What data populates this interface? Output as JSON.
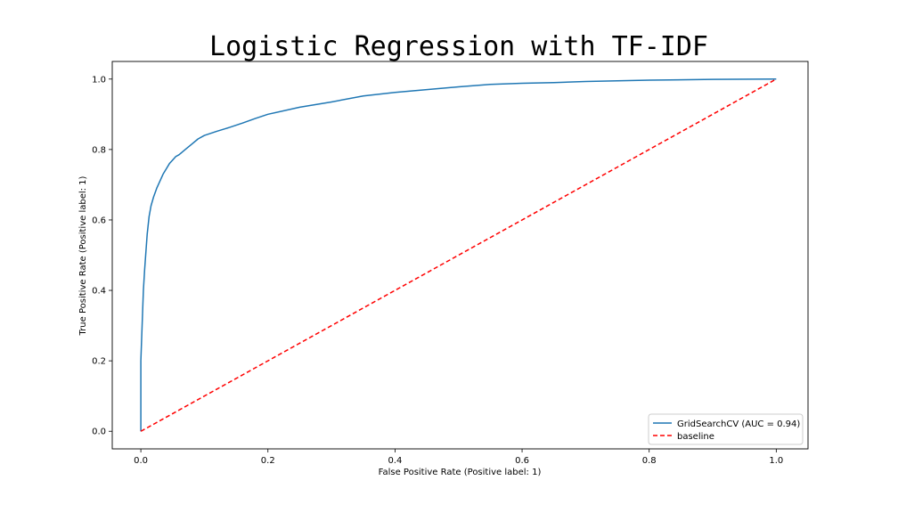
{
  "chart_data": {
    "type": "line",
    "title": "Logistic Regression with TF-IDF",
    "xlabel": "False Positive Rate (Positive label: 1)",
    "ylabel": "True Positive Rate (Positive label: 1)",
    "xlim": [
      -0.045,
      1.05
    ],
    "ylim": [
      -0.05,
      1.05
    ],
    "xticks": [
      0.0,
      0.2,
      0.4,
      0.6,
      0.8,
      1.0
    ],
    "xtick_labels": [
      "0.0",
      "0.2",
      "0.4",
      "0.6",
      "0.8",
      "1.0"
    ],
    "yticks": [
      0.0,
      0.2,
      0.4,
      0.6,
      0.8,
      1.0
    ],
    "ytick_labels": [
      "0.0",
      "0.2",
      "0.4",
      "0.6",
      "0.8",
      "1.0"
    ],
    "grid": false,
    "legend_position": "lower-right",
    "series": [
      {
        "name": "GridSearchCV (AUC = 0.94)",
        "color": "#1f77b4",
        "style": "solid",
        "x": [
          0.0,
          0.0,
          0.002,
          0.004,
          0.006,
          0.008,
          0.01,
          0.013,
          0.016,
          0.02,
          0.025,
          0.03,
          0.035,
          0.04,
          0.045,
          0.05,
          0.055,
          0.06,
          0.07,
          0.08,
          0.09,
          0.1,
          0.12,
          0.14,
          0.16,
          0.18,
          0.2,
          0.25,
          0.3,
          0.35,
          0.4,
          0.45,
          0.5,
          0.55,
          0.6,
          0.65,
          0.7,
          0.8,
          0.9,
          1.0
        ],
        "y": [
          0.0,
          0.2,
          0.3,
          0.4,
          0.46,
          0.51,
          0.56,
          0.61,
          0.64,
          0.665,
          0.69,
          0.71,
          0.73,
          0.745,
          0.76,
          0.77,
          0.78,
          0.785,
          0.8,
          0.815,
          0.83,
          0.84,
          0.852,
          0.863,
          0.875,
          0.888,
          0.9,
          0.92,
          0.935,
          0.952,
          0.962,
          0.97,
          0.978,
          0.985,
          0.988,
          0.99,
          0.993,
          0.997,
          0.999,
          1.0
        ]
      },
      {
        "name": "baseline",
        "color": "#ff0000",
        "style": "dashed",
        "x": [
          0.0,
          1.0
        ],
        "y": [
          0.0,
          1.0
        ]
      }
    ]
  }
}
